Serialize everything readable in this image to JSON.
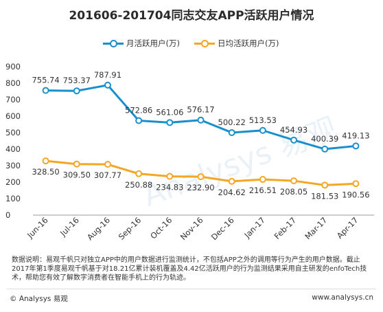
{
  "title": "201606-201704同志交友APP活跃用户情况",
  "colors": {
    "mau": "#1a8fce",
    "dau": "#f5a623",
    "axis": "#999999",
    "text": "#333333"
  },
  "chart_data": {
    "type": "line",
    "categories": [
      "Jun-16",
      "Jul-16",
      "Aug-16",
      "Sep-16",
      "Oct-16",
      "Nov-16",
      "Dec-16",
      "Jan-17",
      "Feb-17",
      "Mar-17",
      "Apr-17"
    ],
    "ylim": [
      0,
      900
    ],
    "yticks": [
      0,
      100,
      200,
      300,
      400,
      500,
      600,
      700,
      800,
      900
    ],
    "grid": false,
    "legend": "top",
    "series": [
      {
        "name": "月活跃用户(万)",
        "values": [
          755.74,
          753.37,
          787.91,
          572.86,
          561.06,
          576.17,
          500.22,
          513.53,
          454.93,
          400.39,
          419.13
        ],
        "labels": [
          "755.74",
          "753.37",
          "787.91",
          "572.86",
          "561.06",
          "576.17",
          "500.22",
          "513.53",
          "454.93",
          "400.39",
          "419.13"
        ]
      },
      {
        "name": "日均活跃用户(万)",
        "values": [
          328.5,
          309.5,
          307.77,
          250.88,
          234.83,
          232.9,
          204.62,
          216.51,
          208.05,
          181.53,
          190.56
        ],
        "labels": [
          "328.50",
          "309.50",
          "307.77",
          "250.88",
          "234.83",
          "232.90",
          "204.62",
          "216.51",
          "208.05",
          "181.53",
          "190.56"
        ]
      }
    ]
  },
  "note": "数据说明：易观千帆只对独立APP中的用户数据进行监测统计，不包括APP之外的调用等行为产生的用户数据。截止2017年第1季度易观千帆基于对18.21亿累计装机覆盖及4.42亿活跃用户的行为监测结果采用自主研发的enfoTech技术，帮助您有效了解数字消费者在智能手机上的行为轨迹。",
  "footer": {
    "left": "© Analysys 易观",
    "right": "www.analysys.cn"
  },
  "watermark": "Analysys 易观"
}
